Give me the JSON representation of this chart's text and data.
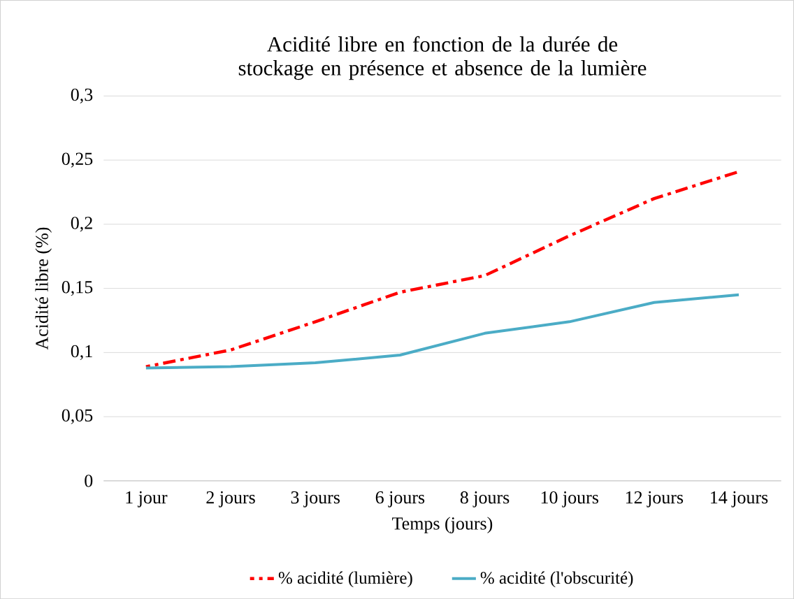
{
  "chart_data": {
    "type": "line",
    "title": "Acidité libre en fonction de la durée de stockage en présence et absence de la lumière",
    "xlabel": "Temps (jours)",
    "ylabel": "Acidité libre (%)",
    "categories": [
      "1 jour",
      "2 jours",
      "3 jours",
      "6 jours",
      "8 jours",
      "10 jours",
      "12 jours",
      "14 jours"
    ],
    "series": [
      {
        "name": "% acidité (lumière)",
        "color": "#ff0000",
        "line_style": "dashed",
        "values": [
          0.089,
          0.102,
          0.124,
          0.147,
          0.16,
          0.191,
          0.22,
          0.241
        ]
      },
      {
        "name": "% acidité (l'obscurité)",
        "color": "#4bacc6",
        "line_style": "solid",
        "values": [
          0.088,
          0.089,
          0.092,
          0.098,
          0.115,
          0.124,
          0.139,
          0.145
        ]
      }
    ],
    "ylim": [
      0,
      0.3
    ],
    "yticks": [
      {
        "value": 0,
        "label": "0"
      },
      {
        "value": 0.05,
        "label": "0,05"
      },
      {
        "value": 0.1,
        "label": "0,1"
      },
      {
        "value": 0.15,
        "label": "0,15"
      },
      {
        "value": 0.2,
        "label": "0,2"
      },
      {
        "value": 0.25,
        "label": "0,25"
      },
      {
        "value": 0.3,
        "label": "0,3"
      }
    ],
    "grid": "y",
    "legend": "bottom",
    "marker": "none"
  }
}
